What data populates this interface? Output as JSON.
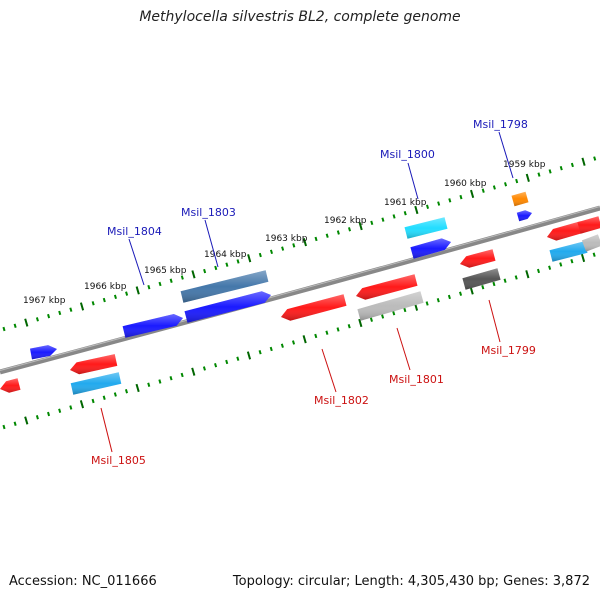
{
  "title": "Methylocella silvestris BL2, complete genome",
  "footer": {
    "accession": "Accession: NC_011666",
    "stats": "Topology: circular; Length: 4,305,430 bp; Genes: 3,872"
  },
  "colors": {
    "backbone": "#888888",
    "tick_minor": "#008800",
    "tick_major": "#006600",
    "label_forward": "#1a1ab8",
    "label_reverse": "#cc1111",
    "red": "#ff1a1a",
    "blue": "#1a1aff",
    "cyan": "#22ddff",
    "lightblue": "#22aaee",
    "steelblue": "#4477aa",
    "gray": "#bbbbbb",
    "darkgray": "#555555",
    "orange": "#ff8800"
  },
  "scale": {
    "unit": "kbp",
    "labels": [
      "1959 kbp",
      "1960 kbp",
      "1961 kbp",
      "1962 kbp",
      "1963 kbp",
      "1964 kbp",
      "1965 kbp",
      "1966 kbp",
      "1967 kbp"
    ]
  },
  "genes": [
    {
      "name": "Msil_1798",
      "strand": "forward"
    },
    {
      "name": "Msil_1799",
      "strand": "reverse"
    },
    {
      "name": "Msil_1800",
      "strand": "forward"
    },
    {
      "name": "Msil_1801",
      "strand": "reverse"
    },
    {
      "name": "Msil_1802",
      "strand": "reverse"
    },
    {
      "name": "Msil_1803",
      "strand": "forward"
    },
    {
      "name": "Msil_1804",
      "strand": "forward"
    },
    {
      "name": "Msil_1805",
      "strand": "reverse"
    }
  ]
}
